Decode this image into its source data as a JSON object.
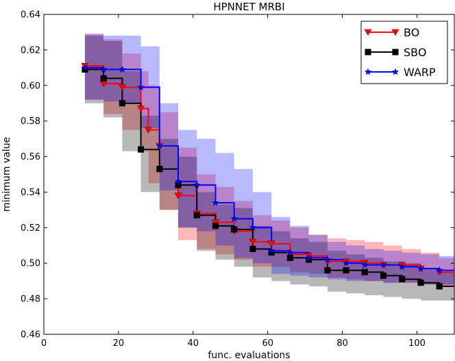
{
  "chart_data": {
    "type": "line",
    "title": "HPNNET MRBI",
    "xlabel": "func. evaluations",
    "ylabel": "minimum value",
    "xlim": [
      0,
      110
    ],
    "ylim": [
      0.46,
      0.64
    ],
    "xticks": [
      0,
      20,
      40,
      60,
      80,
      100
    ],
    "yticks": [
      0.46,
      0.48,
      0.5,
      0.52,
      0.54,
      0.56,
      0.58,
      0.6,
      0.62,
      0.64
    ],
    "xtick_labels": [
      "0",
      "20",
      "40",
      "60",
      "80",
      "100"
    ],
    "ytick_labels": [
      "0.46",
      "0.48",
      "0.50",
      "0.52",
      "0.54",
      "0.56",
      "0.58",
      "0.60",
      "0.62",
      "0.64"
    ],
    "grid": false,
    "legend_position": "top-right",
    "series": [
      {
        "name": "BO",
        "color": "#ff0000",
        "marker": "triangle-down",
        "marker_fill": "#ff0000",
        "band_color": "#ff0000",
        "band_opacity": 0.28,
        "x": [
          11,
          16,
          21,
          26,
          28,
          31,
          36,
          41,
          46,
          51,
          56,
          61,
          66,
          71,
          76,
          81,
          86,
          91,
          96,
          101,
          106,
          110
        ],
        "y": [
          0.611,
          0.601,
          0.599,
          0.587,
          0.575,
          0.566,
          0.538,
          0.528,
          0.523,
          0.518,
          0.512,
          0.511,
          0.505,
          0.504,
          0.501,
          0.501,
          0.5,
          0.499,
          0.499,
          0.497,
          0.495,
          0.493
        ],
        "upper": [
          0.629,
          0.626,
          0.618,
          0.608,
          0.6,
          0.585,
          0.565,
          0.55,
          0.543,
          0.535,
          0.527,
          0.524,
          0.52,
          0.516,
          0.514,
          0.513,
          0.512,
          0.51,
          0.508,
          0.506,
          0.503,
          0.5
        ],
        "lower": [
          0.592,
          0.584,
          0.575,
          0.563,
          0.545,
          0.53,
          0.513,
          0.508,
          0.505,
          0.502,
          0.498,
          0.498,
          0.495,
          0.494,
          0.492,
          0.491,
          0.49,
          0.489,
          0.489,
          0.488,
          0.487,
          0.485
        ]
      },
      {
        "name": "SBO",
        "color": "#000000",
        "marker": "square",
        "marker_fill": "#000000",
        "band_color": "#000000",
        "band_opacity": 0.28,
        "x": [
          11,
          16,
          21,
          26,
          31,
          36,
          41,
          46,
          51,
          56,
          61,
          66,
          71,
          76,
          81,
          86,
          91,
          96,
          101,
          106,
          110
        ],
        "y": [
          0.609,
          0.604,
          0.59,
          0.564,
          0.553,
          0.544,
          0.527,
          0.521,
          0.519,
          0.508,
          0.506,
          0.503,
          0.502,
          0.496,
          0.496,
          0.495,
          0.493,
          0.491,
          0.489,
          0.487,
          0.487
        ],
        "upper": [
          0.628,
          0.625,
          0.608,
          0.583,
          0.57,
          0.56,
          0.54,
          0.533,
          0.531,
          0.521,
          0.518,
          0.514,
          0.512,
          0.507,
          0.505,
          0.503,
          0.501,
          0.5,
          0.497,
          0.495,
          0.494
        ],
        "lower": [
          0.59,
          0.582,
          0.563,
          0.54,
          0.53,
          0.52,
          0.507,
          0.502,
          0.498,
          0.492,
          0.49,
          0.488,
          0.487,
          0.484,
          0.483,
          0.482,
          0.481,
          0.48,
          0.479,
          0.479,
          0.478
        ]
      },
      {
        "name": "WARP",
        "color": "#0000ff",
        "marker": "star",
        "marker_fill": "#0000ff",
        "band_color": "#0000ff",
        "band_opacity": 0.28,
        "x": [
          11,
          16,
          21,
          26,
          31,
          36,
          41,
          46,
          51,
          56,
          61,
          66,
          71,
          76,
          81,
          86,
          91,
          96,
          101,
          106,
          110
        ],
        "y": [
          0.61,
          0.609,
          0.609,
          0.599,
          0.566,
          0.546,
          0.544,
          0.534,
          0.525,
          0.52,
          0.507,
          0.506,
          0.503,
          0.502,
          0.5,
          0.499,
          0.499,
          0.498,
          0.497,
          0.496,
          0.496
        ],
        "upper": [
          0.629,
          0.628,
          0.628,
          0.622,
          0.59,
          0.575,
          0.57,
          0.562,
          0.553,
          0.54,
          0.526,
          0.521,
          0.516,
          0.512,
          0.51,
          0.508,
          0.507,
          0.506,
          0.505,
          0.504,
          0.503
        ],
        "lower": [
          0.592,
          0.591,
          0.59,
          0.576,
          0.541,
          0.52,
          0.518,
          0.51,
          0.503,
          0.5,
          0.494,
          0.493,
          0.492,
          0.491,
          0.49,
          0.49,
          0.489,
          0.489,
          0.488,
          0.488,
          0.488
        ]
      }
    ]
  }
}
